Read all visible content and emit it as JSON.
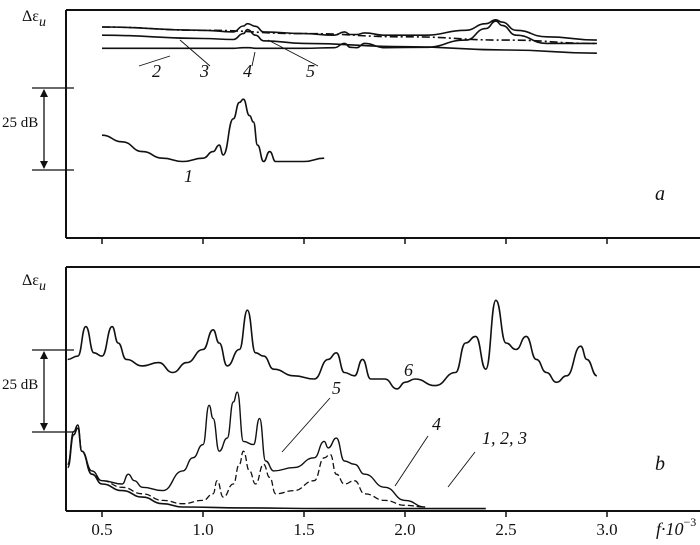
{
  "chart_data": [
    {
      "panel_id": "a",
      "type": "line",
      "y_label": "Δε",
      "y_label_sub": "u",
      "scale_bar": "25 dB",
      "series": [
        {
          "name": "1",
          "x": [
            0.5,
            0.6,
            0.7,
            0.8,
            0.9,
            1.0,
            1.05,
            1.08,
            1.1,
            1.15,
            1.18,
            1.2,
            1.23,
            1.25,
            1.27,
            1.3,
            1.33,
            1.36,
            1.4,
            1.5,
            1.6
          ],
          "y": [
            -33,
            -35,
            -38,
            -40,
            -41,
            -40,
            -38,
            -36,
            -39,
            -28,
            -23,
            -22,
            -27,
            -29,
            -36,
            -41,
            -38,
            -41,
            -41,
            -41,
            -40
          ]
        },
        {
          "name": "2",
          "x": [
            0.5,
            0.8,
            1.0,
            1.15,
            1.2,
            1.23,
            1.26,
            1.3,
            1.5,
            1.65,
            1.7,
            1.73,
            1.76,
            1.8,
            1.9,
            2.1,
            2.3,
            2.4,
            2.45,
            2.48,
            2.55,
            2.7,
            2.95
          ],
          "y": [
            -6.5,
            -6.5,
            -6.5,
            -6.5,
            -6.3,
            -6.3,
            -6.5,
            -6.5,
            -6.5,
            -6.3,
            -5,
            -6.2,
            -6.3,
            -5,
            -6.3,
            -6.2,
            -4,
            -0.5,
            1.8,
            0.5,
            -2.5,
            -5,
            -5
          ]
        },
        {
          "name": "3",
          "x": [
            0.5,
            1.0,
            1.5,
            2.0,
            2.5,
            2.95
          ],
          "y": [
            0,
            -1,
            -2,
            -3,
            -4,
            -5
          ]
        },
        {
          "name": "4",
          "x": [
            0.5,
            1.0,
            1.15,
            1.2,
            1.22,
            1.26,
            1.3,
            1.5,
            2.0,
            2.5,
            2.95
          ],
          "y": [
            -2.5,
            -3.5,
            -3.8,
            -2,
            -0.8,
            -2.5,
            -4.2,
            -5,
            -6,
            -7,
            -8
          ]
        },
        {
          "name": "5",
          "x": [
            0.5,
            1.0,
            1.15,
            1.2,
            1.22,
            1.26,
            1.3,
            1.5,
            1.65,
            1.7,
            1.73,
            1.76,
            1.8,
            1.9,
            2.1,
            2.3,
            2.4,
            2.45,
            2.48,
            2.55,
            2.7,
            2.95
          ],
          "y": [
            0,
            -1,
            -1.5,
            0.3,
            1,
            0.2,
            -1.5,
            -2,
            -2.5,
            -1.5,
            -2.3,
            -2.3,
            -1.8,
            -2.5,
            -2.5,
            -1,
            1,
            2.2,
            1.5,
            -1,
            -3,
            -4
          ]
        }
      ],
      "curve_labels": [
        "1",
        "2",
        "3",
        "4",
        "5"
      ],
      "panel_label": "a"
    },
    {
      "panel_id": "b",
      "type": "line",
      "y_label": "Δε",
      "y_label_sub": "u",
      "scale_bar": "25 dB",
      "x_label": "f·10",
      "x_label_exp": "−3",
      "x_ticks": [
        0.5,
        1.0,
        1.5,
        2.0,
        2.5,
        3.0
      ],
      "x_tick_labels": [
        "0.5",
        "1.0",
        "1.5",
        "2.0",
        "2.5",
        "3.0"
      ],
      "xlim": [
        0.32,
        2.95
      ],
      "series": [
        {
          "name": "1, 2, 3",
          "x": [
            0.33,
            0.36,
            0.38,
            0.4,
            0.45,
            0.5,
            0.6,
            0.7,
            0.8,
            0.9,
            1.2,
            1.6,
            2.0,
            2.4
          ],
          "y": [
            -45,
            -35,
            -33,
            -40,
            -47,
            -50,
            -52,
            -54,
            -56,
            -57,
            -57.3,
            -57.5,
            -57.5,
            -57.5
          ]
        },
        {
          "name": "4",
          "x": [
            0.33,
            0.36,
            0.38,
            0.4,
            0.45,
            0.5,
            0.6,
            0.7,
            0.8,
            0.9,
            1.0,
            1.05,
            1.07,
            1.1,
            1.15,
            1.18,
            1.2,
            1.23,
            1.26,
            1.3,
            1.33,
            1.36,
            1.45,
            1.55,
            1.6,
            1.63,
            1.66,
            1.7,
            1.75,
            1.8,
            1.9,
            2.0,
            2.1
          ],
          "y": [
            -44,
            -35,
            -32,
            -40,
            -47,
            -49,
            -51,
            -53,
            -55,
            -56,
            -55,
            -53,
            -49,
            -54,
            -50,
            -44,
            -40,
            -46,
            -50,
            -44,
            -48,
            -53,
            -52,
            -49,
            -42,
            -41,
            -47,
            -50,
            -49,
            -53,
            -55,
            -56.5,
            -57
          ]
        },
        {
          "name": "5",
          "x": [
            0.33,
            0.36,
            0.38,
            0.4,
            0.45,
            0.5,
            0.6,
            0.63,
            0.66,
            0.7,
            0.8,
            0.9,
            0.95,
            1.0,
            1.03,
            1.05,
            1.08,
            1.12,
            1.15,
            1.17,
            1.2,
            1.25,
            1.28,
            1.31,
            1.35,
            1.45,
            1.55,
            1.6,
            1.62,
            1.66,
            1.7,
            1.75,
            1.8,
            1.9,
            2.0,
            2.1
          ],
          "y": [
            -44,
            -34,
            -32,
            -40,
            -46,
            -49,
            -50,
            -47,
            -49,
            -51,
            -52,
            -46,
            -42,
            -38,
            -26,
            -30,
            -40,
            -36,
            -25,
            -22,
            -37,
            -38,
            -30,
            -43,
            -46,
            -45,
            -42,
            -37,
            -39,
            -36,
            -43,
            -44,
            -47,
            -51,
            -55,
            -57
          ]
        },
        {
          "name": "6",
          "x": [
            0.33,
            0.38,
            0.42,
            0.46,
            0.5,
            0.55,
            0.58,
            0.62,
            0.7,
            0.78,
            0.85,
            0.92,
            1.0,
            1.05,
            1.08,
            1.12,
            1.18,
            1.22,
            1.26,
            1.3,
            1.35,
            1.45,
            1.55,
            1.62,
            1.66,
            1.7,
            1.75,
            1.79,
            1.83,
            1.9,
            1.96,
            2.0,
            2.05,
            2.15,
            2.25,
            2.3,
            2.35,
            2.4,
            2.45,
            2.5,
            2.55,
            2.6,
            2.65,
            2.7,
            2.75,
            2.8,
            2.87,
            2.9,
            2.95
          ],
          "y": [
            -12,
            -11,
            -2,
            -10,
            -11,
            -2,
            -7,
            -12,
            -14,
            -13,
            -16,
            -13,
            -9,
            -3,
            -7,
            -14,
            -9,
            3,
            -10,
            -11,
            -15,
            -17,
            -18,
            -12,
            -10,
            -16,
            -17,
            -12,
            -18,
            -18,
            -21,
            -19,
            -18,
            -20,
            -16,
            -7,
            -5,
            -15,
            6,
            -7,
            -9,
            -5,
            -12,
            -16,
            -19,
            -17,
            -8,
            -12,
            -17
          ]
        }
      ],
      "curve_labels": [
        "1, 2, 3",
        "4",
        "5",
        "6"
      ],
      "panel_label": "b"
    }
  ]
}
